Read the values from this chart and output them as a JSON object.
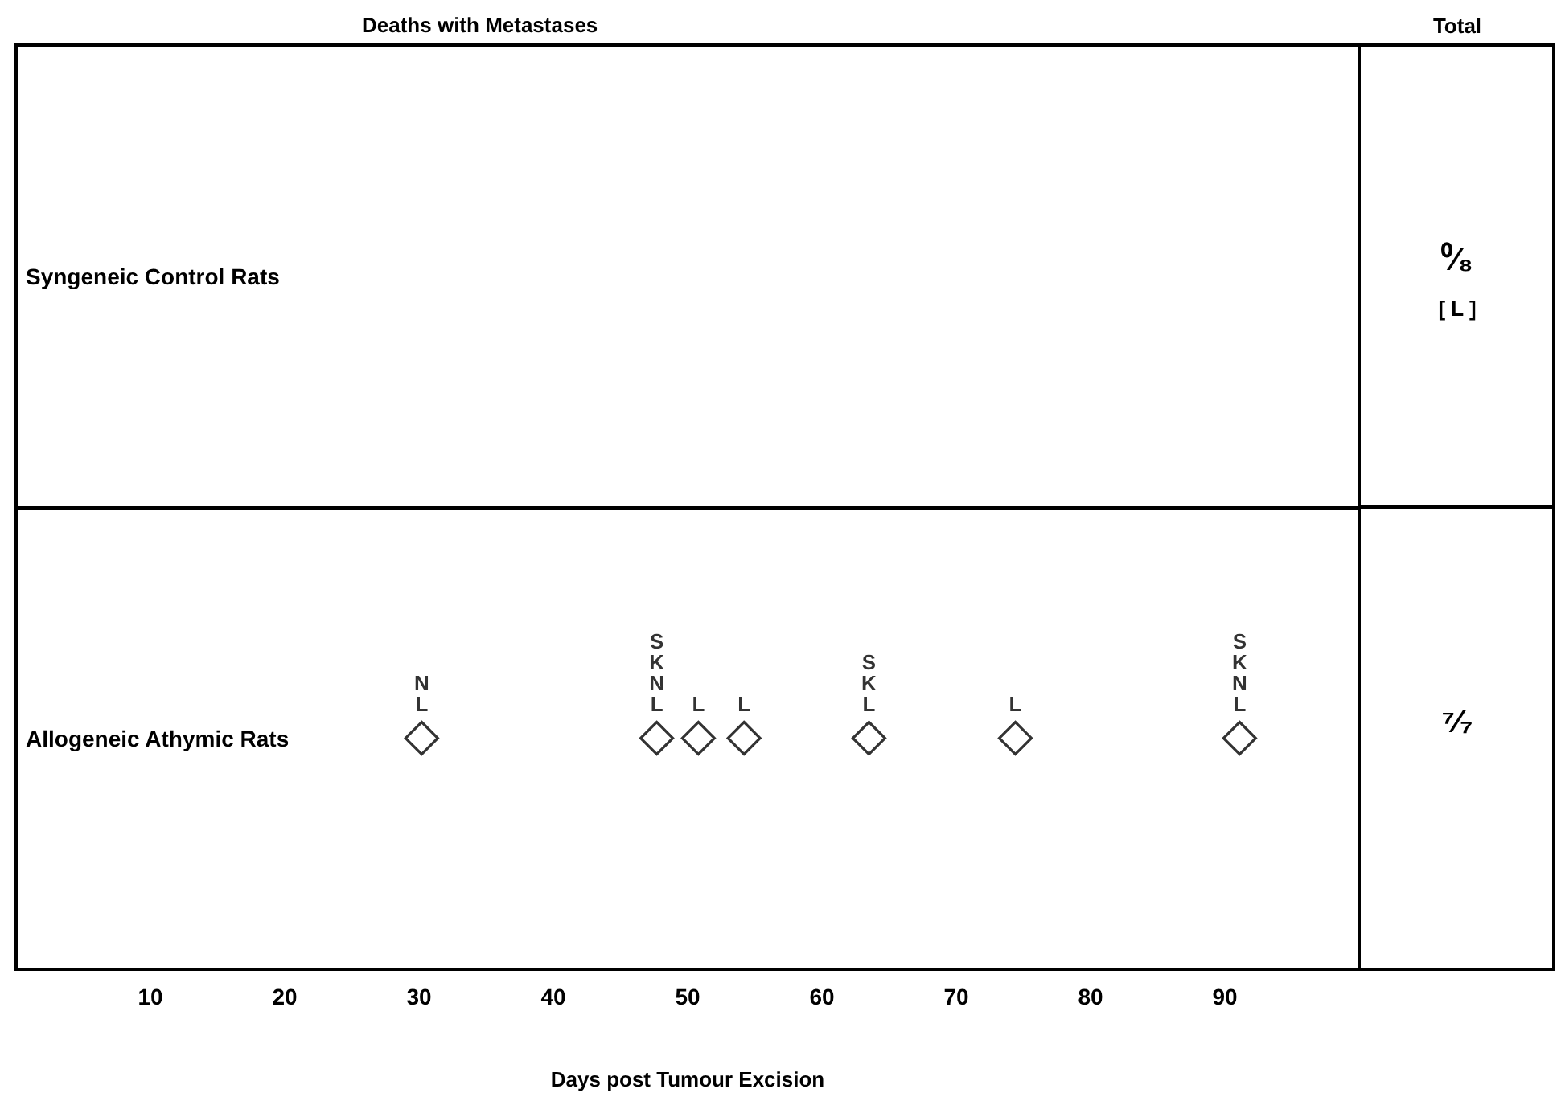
{
  "chart_data": {
    "type": "scatter",
    "orientation": "horizontal",
    "title": "Deaths with Metastases",
    "xlabel": "Days post Tumour Excision",
    "categories": [
      "Syngeneic Control Rats",
      "Allogeneic Athymic Rats"
    ],
    "series": [
      {
        "color": "#000000",
        "x": [
          "Allogeneic Athymic Rats",
          "Allogeneic Athymic Rats",
          "Allogeneic Athymic Rats",
          "Allogeneic Athymic Rats",
          "Allogeneic Athymic Rats",
          "Allogeneic Athymic Rats",
          "Allogeneic Athymic Rats"
        ],
        "values": [
          30.2,
          47.7,
          50.8,
          54.2,
          63.5,
          74.4,
          91.1
        ],
        "value_labels": [
          "NL",
          "SKNL",
          "L",
          "L",
          "SKL",
          "L",
          "SKNL"
        ]
      }
    ],
    "xlim": [
      0,
      100
    ],
    "xticks": [
      10,
      20,
      30,
      40,
      50,
      60,
      70,
      80,
      90
    ],
    "grid": "y",
    "marker": "diamond",
    "annotations": [
      "Total",
      "⁰⁄₈",
      "[ L ]",
      "⁷⁄₇"
    ]
  }
}
